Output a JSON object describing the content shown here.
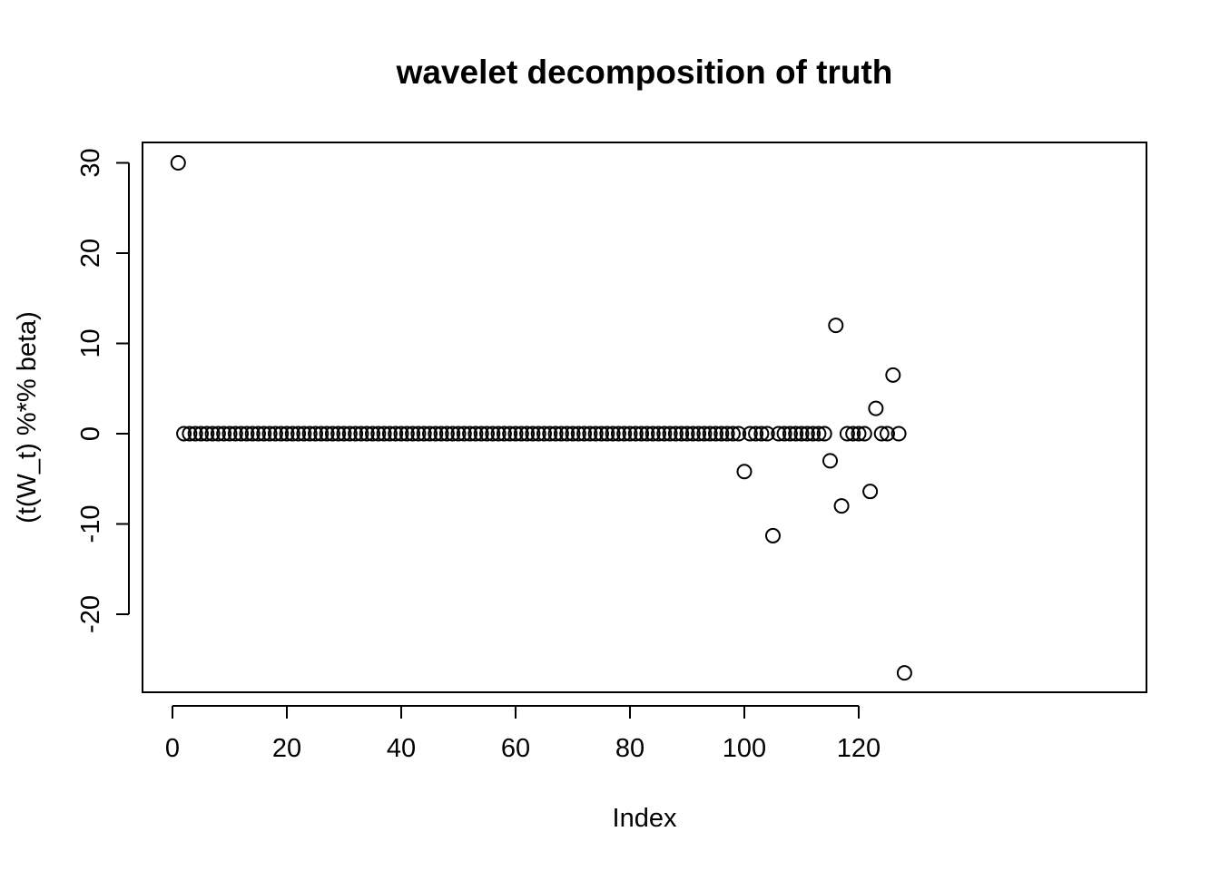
{
  "chart_data": {
    "type": "scatter",
    "title": "wavelet decomposition of truth",
    "xlabel": "Index",
    "ylabel": "(t(W_t) %*% beta)",
    "xlim": [
      0,
      128
    ],
    "ylim": [
      -26.5,
      30
    ],
    "xticks": [
      0,
      20,
      40,
      60,
      80,
      100,
      120
    ],
    "yticks": [
      -20,
      -10,
      0,
      10,
      20,
      30
    ],
    "xtick_labels": [
      "0",
      "20",
      "40",
      "60",
      "80",
      "100",
      "120"
    ],
    "ytick_labels": [
      "-20",
      "-10",
      "0",
      "10",
      "20",
      "30"
    ],
    "grid": false,
    "legend": "none",
    "marker": "open-circle",
    "series": [
      {
        "x": [
          1,
          2,
          3,
          4,
          5,
          6,
          7,
          8,
          9,
          10,
          11,
          12,
          13,
          14,
          15,
          16,
          17,
          18,
          19,
          20,
          21,
          22,
          23,
          24,
          25,
          26,
          27,
          28,
          29,
          30,
          31,
          32,
          33,
          34,
          35,
          36,
          37,
          38,
          39,
          40,
          41,
          42,
          43,
          44,
          45,
          46,
          47,
          48,
          49,
          50,
          51,
          52,
          53,
          54,
          55,
          56,
          57,
          58,
          59,
          60,
          61,
          62,
          63,
          64,
          65,
          66,
          67,
          68,
          69,
          70,
          71,
          72,
          73,
          74,
          75,
          76,
          77,
          78,
          79,
          80,
          81,
          82,
          83,
          84,
          85,
          86,
          87,
          88,
          89,
          90,
          91,
          92,
          93,
          94,
          95,
          96,
          97,
          98,
          99,
          100,
          101,
          102,
          103,
          104,
          105,
          106,
          107,
          108,
          109,
          110,
          111,
          112,
          113,
          114,
          115,
          116,
          117,
          118,
          119,
          120,
          121,
          122,
          123,
          124,
          125,
          126,
          127,
          128
        ],
        "values": [
          30,
          0,
          0,
          0,
          0,
          0,
          0,
          0,
          0,
          0,
          0,
          0,
          0,
          0,
          0,
          0,
          0,
          0,
          0,
          0,
          0,
          0,
          0,
          0,
          0,
          0,
          0,
          0,
          0,
          0,
          0,
          0,
          0,
          0,
          0,
          0,
          0,
          0,
          0,
          0,
          0,
          0,
          0,
          0,
          0,
          0,
          0,
          0,
          0,
          0,
          0,
          0,
          0,
          0,
          0,
          0,
          0,
          0,
          0,
          0,
          0,
          0,
          0,
          0,
          0,
          0,
          0,
          0,
          0,
          0,
          0,
          0,
          0,
          0,
          0,
          0,
          0,
          0,
          0,
          0,
          0,
          0,
          0,
          0,
          0,
          0,
          0,
          0,
          0,
          0,
          0,
          0,
          0,
          0,
          0,
          0,
          0,
          0,
          0,
          -4.2,
          0,
          0,
          0,
          0,
          -11.3,
          0,
          0,
          0,
          0,
          0,
          0,
          0,
          0,
          0,
          -3,
          12,
          -8,
          0,
          0,
          0,
          0,
          -6.4,
          2.8,
          0,
          0,
          6.5,
          0,
          -26.5
        ]
      }
    ]
  }
}
